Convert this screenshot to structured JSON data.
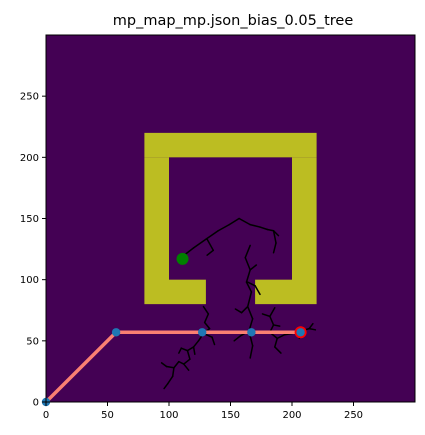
{
  "chart_data": {
    "type": "map",
    "title": "mp_map_mp.json_bias_0.05_tree",
    "xlabel": "",
    "ylabel": "",
    "xlim": [
      0,
      300
    ],
    "ylim": [
      0,
      300
    ],
    "x_ticks": [
      0,
      50,
      100,
      150,
      200,
      250
    ],
    "y_ticks": [
      0,
      50,
      100,
      150,
      200,
      250
    ],
    "grid": false,
    "background_color": "#440154",
    "obstacle_color": "#bcbd22",
    "obstacles": [
      {
        "x0": 80,
        "x1": 220,
        "y0": 200,
        "y1": 220
      },
      {
        "x0": 80,
        "x1": 100,
        "y0": 80,
        "y1": 200
      },
      {
        "x0": 200,
        "x1": 220,
        "y0": 80,
        "y1": 200
      },
      {
        "x0": 100,
        "x1": 130,
        "y0": 80,
        "y1": 100
      },
      {
        "x0": 170,
        "x1": 200,
        "y0": 80,
        "y1": 100
      }
    ],
    "tree_color": "#000000",
    "tree_edges": [
      [
        [
          111,
          119
        ],
        [
          120,
          126
        ]
      ],
      [
        [
          120,
          126
        ],
        [
          130,
          133
        ]
      ],
      [
        [
          130,
          133
        ],
        [
          140,
          140
        ]
      ],
      [
        [
          140,
          140
        ],
        [
          149,
          145
        ]
      ],
      [
        [
          149,
          145
        ],
        [
          157,
          150
        ]
      ],
      [
        [
          157,
          150
        ],
        [
          166,
          145
        ]
      ],
      [
        [
          166,
          145
        ],
        [
          174,
          143
        ]
      ],
      [
        [
          174,
          143
        ],
        [
          180,
          141
        ]
      ],
      [
        [
          180,
          141
        ],
        [
          185,
          140
        ]
      ],
      [
        [
          185,
          140
        ],
        [
          187,
          130
        ]
      ],
      [
        [
          187,
          130
        ],
        [
          185,
          122
        ]
      ],
      [
        [
          185,
          140
        ],
        [
          189,
          136
        ]
      ],
      [
        [
          131,
          133
        ],
        [
          136,
          124
        ]
      ],
      [
        [
          136,
          124
        ],
        [
          131,
          120
        ]
      ],
      [
        [
          166,
          128
        ],
        [
          162,
          118
        ]
      ],
      [
        [
          162,
          118
        ],
        [
          166,
          108
        ]
      ],
      [
        [
          166,
          108
        ],
        [
          163,
          98
        ]
      ],
      [
        [
          163,
          98
        ],
        [
          167,
          90
        ]
      ],
      [
        [
          167,
          90
        ],
        [
          164,
          78
        ]
      ],
      [
        [
          164,
          78
        ],
        [
          168,
          68
        ]
      ],
      [
        [
          168,
          68
        ],
        [
          165,
          58
        ]
      ],
      [
        [
          165,
          58
        ],
        [
          168,
          46
        ]
      ],
      [
        [
          168,
          46
        ],
        [
          166,
          36
        ]
      ],
      [
        [
          164,
          78
        ],
        [
          159,
          73
        ]
      ],
      [
        [
          159,
          73
        ],
        [
          154,
          76
        ]
      ],
      [
        [
          165,
          58
        ],
        [
          158,
          54
        ]
      ],
      [
        [
          158,
          54
        ],
        [
          153,
          50
        ]
      ],
      [
        [
          164,
          98
        ],
        [
          170,
          95
        ]
      ],
      [
        [
          170,
          95
        ],
        [
          174,
          88
        ]
      ],
      [
        [
          166,
          108
        ],
        [
          171,
          112
        ]
      ],
      [
        [
          128,
          78
        ],
        [
          132,
          72
        ]
      ],
      [
        [
          132,
          72
        ],
        [
          129,
          65
        ]
      ],
      [
        [
          129,
          65
        ],
        [
          133,
          60
        ]
      ],
      [
        [
          133,
          60
        ],
        [
          128,
          56
        ]
      ],
      [
        [
          128,
          56
        ],
        [
          124,
          50
        ]
      ],
      [
        [
          124,
          50
        ],
        [
          120,
          45
        ]
      ],
      [
        [
          120,
          45
        ],
        [
          115,
          42
        ]
      ],
      [
        [
          115,
          42
        ],
        [
          117,
          35
        ]
      ],
      [
        [
          117,
          35
        ],
        [
          112,
          31
        ]
      ],
      [
        [
          112,
          31
        ],
        [
          108,
          33
        ]
      ],
      [
        [
          108,
          33
        ],
        [
          104,
          28
        ]
      ],
      [
        [
          104,
          28
        ],
        [
          103,
          21
        ]
      ],
      [
        [
          103,
          21
        ],
        [
          99,
          15
        ]
      ],
      [
        [
          99,
          15
        ],
        [
          96,
          11
        ]
      ],
      [
        [
          112,
          31
        ],
        [
          116,
          26
        ]
      ],
      [
        [
          115,
          42
        ],
        [
          110,
          44
        ]
      ],
      [
        [
          110,
          44
        ],
        [
          108,
          40
        ]
      ],
      [
        [
          120,
          45
        ],
        [
          121,
          39
        ]
      ],
      [
        [
          128,
          56
        ],
        [
          135,
          53
        ]
      ],
      [
        [
          135,
          53
        ],
        [
          137,
          47
        ]
      ],
      [
        [
          104,
          28
        ],
        [
          98,
          29
        ]
      ],
      [
        [
          98,
          29
        ],
        [
          94,
          32
        ]
      ],
      [
        [
          186,
          77
        ],
        [
          182,
          70
        ]
      ],
      [
        [
          182,
          70
        ],
        [
          185,
          63
        ]
      ],
      [
        [
          185,
          63
        ],
        [
          182,
          57
        ]
      ],
      [
        [
          182,
          57
        ],
        [
          188,
          52
        ]
      ],
      [
        [
          188,
          52
        ],
        [
          186,
          45
        ]
      ],
      [
        [
          186,
          45
        ],
        [
          191,
          40
        ]
      ],
      [
        [
          188,
          52
        ],
        [
          194,
          55
        ]
      ],
      [
        [
          194,
          55
        ],
        [
          200,
          56
        ]
      ],
      [
        [
          200,
          56
        ],
        [
          207,
          58
        ]
      ],
      [
        [
          207,
          58
        ],
        [
          214,
          60
        ]
      ],
      [
        [
          214,
          60
        ],
        [
          219,
          59
        ]
      ],
      [
        [
          214,
          60
        ],
        [
          217,
          64
        ]
      ],
      [
        [
          182,
          70
        ],
        [
          176,
          72
        ]
      ],
      [
        [
          185,
          63
        ],
        [
          190,
          62
        ]
      ],
      [
        [
          207,
          58
        ],
        [
          206,
          52
        ]
      ]
    ],
    "path_color": "#fa8072",
    "path": [
      {
        "x": 0,
        "y": 0
      },
      {
        "x": 57,
        "y": 57
      },
      {
        "x": 127,
        "y": 57
      },
      {
        "x": 167,
        "y": 57
      },
      {
        "x": 207,
        "y": 57
      }
    ],
    "waypoint_color": "#1f77b4",
    "waypoints": [
      {
        "x": 0,
        "y": 0
      },
      {
        "x": 57,
        "y": 57
      },
      {
        "x": 127,
        "y": 57
      },
      {
        "x": 167,
        "y": 57
      },
      {
        "x": 207,
        "y": 57
      }
    ],
    "start": {
      "x": 111,
      "y": 117,
      "color": "#008000"
    },
    "goal": {
      "x": 207,
      "y": 57,
      "color": "#ff0000"
    }
  }
}
